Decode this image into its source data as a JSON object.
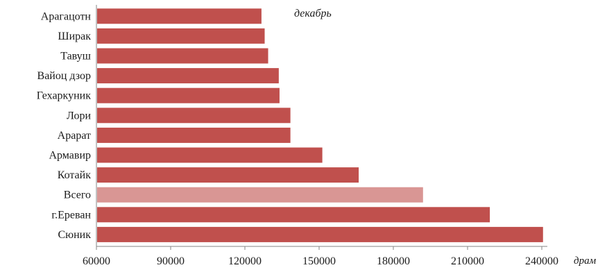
{
  "chart_data": {
    "type": "bar",
    "orientation": "horizontal",
    "period_label": "декабрь",
    "unit_label": "драм",
    "categories": [
      "Арагацотн",
      "Ширак",
      "Тавуш",
      "Вайоц дзор",
      "Гехаркуник",
      "Лори",
      "Арарат",
      "Армавир",
      "Котайк",
      "Всего",
      "г.Ереван",
      "Сюник"
    ],
    "values": [
      126700,
      128000,
      129400,
      133700,
      134000,
      138400,
      138400,
      151300,
      166000,
      192000,
      219000,
      240500
    ],
    "highlight_category": "Всего",
    "xlim": [
      60000,
      240000
    ],
    "xticks": [
      60000,
      90000,
      120000,
      150000,
      180000,
      210000,
      240000
    ],
    "bar_color": "#c0504d",
    "highlight_color": "#d99694",
    "axis_color": "#868686"
  }
}
